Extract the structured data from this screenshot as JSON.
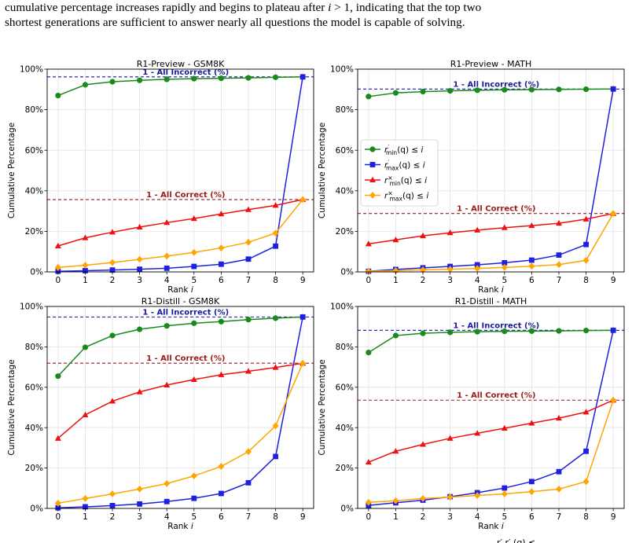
{
  "intro_lines": [
    "cumulative percentage increases rapidly and begins to plateau after i > 1, indicating that the top two",
    "shortest generations are sufficient to answer nearly all questions the model is capable of solving."
  ],
  "colors": {
    "rmin_correct": "#1a8a1a",
    "rmax_correct": "#1f1fe0",
    "rmin_incorrect": "#ee1111",
    "rmax_incorrect": "#ffa500",
    "incorrect_ref": "#1a1a9a",
    "correct_ref": "#9a1a1a"
  },
  "legend": {
    "entries": [
      "r′min(q) ≤ i",
      "r′max(q) ≤ i",
      "r×min(q) ≤ i",
      "r×max(q) ≤ i"
    ],
    "placement": "center-left of R1-Preview - MATH panel"
  },
  "footer_fragment": "r′ r′ (q) ≤",
  "chart_data": [
    {
      "type": "line",
      "title": "R1-Preview - GSM8K",
      "xlabel": "Rank i",
      "ylabel": "Cumulative Percentage",
      "x": [
        0,
        1,
        2,
        3,
        4,
        5,
        6,
        7,
        8,
        9
      ],
      "xlim": [
        -0.4,
        9.4
      ],
      "ylim": [
        0,
        100
      ],
      "yticks": [
        "0%",
        "20%",
        "40%",
        "60%",
        "80%",
        "100%"
      ],
      "grid": true,
      "series": [
        {
          "key": "rmin_correct",
          "marker": "circle",
          "values": [
            87,
            92.3,
            93.8,
            94.5,
            95,
            95.3,
            95.5,
            95.7,
            96,
            96.2
          ]
        },
        {
          "key": "rmax_correct",
          "marker": "square",
          "values": [
            0.3,
            0.6,
            0.9,
            1.3,
            1.8,
            2.7,
            3.8,
            6.3,
            12.7,
            96.2
          ]
        },
        {
          "key": "rmin_incorrect",
          "marker": "triangle",
          "values": [
            12.8,
            16.8,
            19.6,
            22.1,
            24.3,
            26.3,
            28.6,
            30.7,
            32.8,
            35.7
          ]
        },
        {
          "key": "rmax_incorrect",
          "marker": "diamond",
          "values": [
            2.2,
            3.3,
            4.6,
            6.2,
            7.8,
            9.6,
            11.8,
            14.6,
            19.1,
            35.7
          ]
        }
      ],
      "ref_lines": [
        {
          "key": "incorrect_ref",
          "label": "1 - All Incorrect (%)",
          "value": 96.2
        },
        {
          "key": "correct_ref",
          "label": "1 - All Correct (%)",
          "value": 35.7
        }
      ]
    },
    {
      "type": "line",
      "title": "R1-Preview - MATH",
      "xlabel": "Rank i",
      "ylabel": "Cumulative Percentage",
      "x": [
        0,
        1,
        2,
        3,
        4,
        5,
        6,
        7,
        8,
        9
      ],
      "xlim": [
        -0.4,
        9.4
      ],
      "ylim": [
        0,
        100
      ],
      "yticks": [
        "0%",
        "20%",
        "40%",
        "60%",
        "80%",
        "100%"
      ],
      "grid": true,
      "series": [
        {
          "key": "rmin_correct",
          "marker": "circle",
          "values": [
            86.5,
            88.3,
            88.9,
            89.3,
            89.6,
            89.8,
            89.9,
            90,
            90.1,
            90.2
          ]
        },
        {
          "key": "rmax_correct",
          "marker": "square",
          "values": [
            0.3,
            1.2,
            2,
            2.7,
            3.5,
            4.5,
            5.8,
            8.3,
            13.5,
            90.2
          ]
        },
        {
          "key": "rmin_incorrect",
          "marker": "triangle",
          "values": [
            13.8,
            15.8,
            17.8,
            19.3,
            20.6,
            21.8,
            22.8,
            24,
            26,
            28.8
          ]
        },
        {
          "key": "rmax_incorrect",
          "marker": "diamond",
          "values": [
            0.3,
            0.6,
            1,
            1.3,
            1.7,
            2.2,
            2.8,
            3.6,
            5.7,
            28.8
          ]
        }
      ],
      "ref_lines": [
        {
          "key": "incorrect_ref",
          "label": "1 - All Incorrect (%)",
          "value": 90.2
        },
        {
          "key": "correct_ref",
          "label": "1 - All Correct (%)",
          "value": 28.8
        }
      ]
    },
    {
      "type": "line",
      "title": "R1-Distill - GSM8K",
      "xlabel": "Rank i",
      "ylabel": "Cumulative Percentage",
      "x": [
        0,
        1,
        2,
        3,
        4,
        5,
        6,
        7,
        8,
        9
      ],
      "xlim": [
        -0.4,
        9.4
      ],
      "ylim": [
        0,
        100
      ],
      "yticks": [
        "0%",
        "20%",
        "40%",
        "60%",
        "80%",
        "100%"
      ],
      "grid": true,
      "series": [
        {
          "key": "rmin_correct",
          "marker": "circle",
          "values": [
            65.5,
            79.8,
            85.6,
            88.7,
            90.4,
            91.7,
            92.5,
            93.5,
            94.2,
            94.8
          ]
        },
        {
          "key": "rmax_correct",
          "marker": "square",
          "values": [
            0.3,
            0.8,
            1.4,
            2.2,
            3.4,
            5,
            7.4,
            12.7,
            25.7,
            94.8
          ]
        },
        {
          "key": "rmin_incorrect",
          "marker": "triangle",
          "values": [
            34.7,
            46.3,
            53.1,
            57.7,
            61.1,
            63.8,
            66.2,
            67.9,
            69.8,
            71.9
          ]
        },
        {
          "key": "rmax_incorrect",
          "marker": "diamond",
          "values": [
            2.6,
            4.9,
            7.2,
            9.6,
            12.3,
            16.1,
            20.8,
            28.1,
            40.9,
            71.9
          ]
        }
      ],
      "ref_lines": [
        {
          "key": "incorrect_ref",
          "label": "1 - All Incorrect (%)",
          "value": 94.8
        },
        {
          "key": "correct_ref",
          "label": "1 - All Correct (%)",
          "value": 71.9
        }
      ]
    },
    {
      "type": "line",
      "title": "R1-Distill - MATH",
      "xlabel": "Rank i",
      "ylabel": "Cumulative Percentage",
      "x": [
        0,
        1,
        2,
        3,
        4,
        5,
        6,
        7,
        8,
        9
      ],
      "xlim": [
        -0.4,
        9.4
      ],
      "ylim": [
        0,
        100
      ],
      "yticks": [
        "0%",
        "20%",
        "40%",
        "60%",
        "80%",
        "100%"
      ],
      "grid": true,
      "series": [
        {
          "key": "rmin_correct",
          "marker": "circle",
          "values": [
            77.2,
            85.6,
            86.7,
            87.2,
            87.5,
            87.7,
            87.8,
            87.9,
            88.1,
            88.2
          ]
        },
        {
          "key": "rmax_correct",
          "marker": "square",
          "values": [
            1.5,
            2.8,
            4.1,
            5.8,
            7.8,
            10.1,
            13.3,
            18.2,
            28.3,
            88.2
          ]
        },
        {
          "key": "rmin_incorrect",
          "marker": "triangle",
          "values": [
            22.9,
            28.3,
            31.7,
            34.7,
            37.2,
            39.7,
            42.2,
            44.7,
            47.7,
            53.6
          ]
        },
        {
          "key": "rmax_incorrect",
          "marker": "diamond",
          "values": [
            3,
            3.8,
            4.9,
            5.6,
            6.4,
            7.2,
            8.3,
            9.6,
            13.3,
            53.6
          ]
        }
      ],
      "ref_lines": [
        {
          "key": "incorrect_ref",
          "label": "1 - All Incorrect (%)",
          "value": 88.2
        },
        {
          "key": "correct_ref",
          "label": "1 - All Correct (%)",
          "value": 53.6
        }
      ]
    }
  ]
}
